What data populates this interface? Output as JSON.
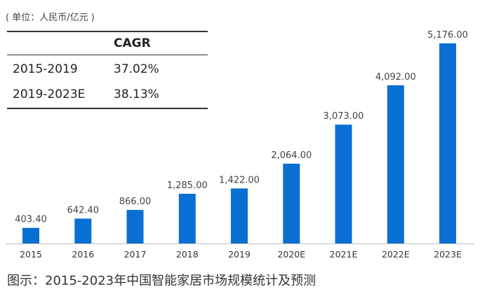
{
  "unit_label": "( 单位：人民币/亿元 )",
  "table": {
    "header": [
      "",
      "CAGR"
    ],
    "rows": [
      [
        "2015-2019",
        "37.02%"
      ],
      [
        "2019-2023E",
        "38.13%"
      ]
    ]
  },
  "caption": "图示：2015-2023年中国智能家居市场规模统计及预测",
  "chart_data": {
    "type": "bar",
    "categories": [
      "2015",
      "2016",
      "2017",
      "2018",
      "2019",
      "2020E",
      "2021E",
      "2022E",
      "2023E"
    ],
    "values": [
      403.4,
      642.4,
      866.0,
      1285.0,
      1422.0,
      2064.0,
      3073.0,
      4092.0,
      5176.0
    ],
    "value_labels": [
      "403.40",
      "642.40",
      "866.00",
      "1,285.00",
      "1,422.00",
      "2,064.00",
      "3,073.00",
      "4,092.00",
      "5,176.00"
    ],
    "title": "",
    "xlabel": "",
    "ylabel": "",
    "ylim": [
      0,
      5176
    ],
    "grid": false,
    "bar_color": "#0a6fd3"
  }
}
